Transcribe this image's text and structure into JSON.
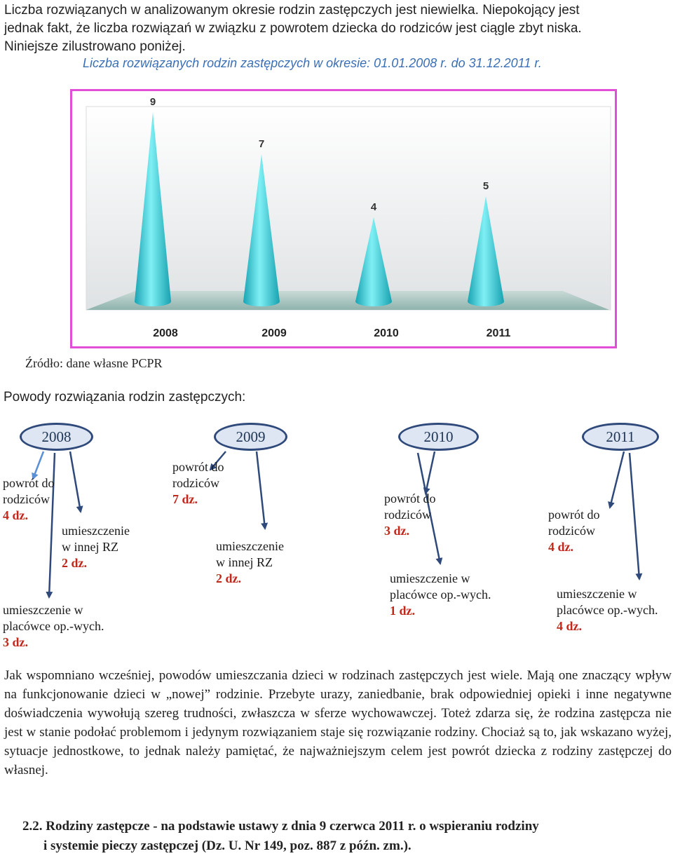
{
  "intro": {
    "lines": [
      "Liczba rozwiązanych w analizowanym okresie rodzin zastępczych jest niewielka. Niepokojący jest",
      "jednak fakt, że liczba rozwiązań w związku z powrotem dziecka do rodziców jest ciągle zbyt niska.",
      "Niniejsze zilustrowano poniżej."
    ]
  },
  "chart_caption": "Liczba rozwiązanych rodzin zastępczych w okresie: 01.01.2008 r. do 31.12.2011 r.",
  "chart_data": {
    "type": "bar",
    "title": "Liczba rozwiązanych rodzin zastępczych w okresie: 01.01.2008 r. do 31.12.2011 r.",
    "categories": [
      "2008",
      "2009",
      "2010",
      "2011"
    ],
    "values": [
      9,
      7,
      4,
      5
    ],
    "ylim": [
      0,
      9
    ],
    "shape": "cone",
    "color": "#3cc8d6",
    "grid": false,
    "legend": "none"
  },
  "source": "Źródło: dane własne PCPR",
  "reasons_title": "Powody rozwiązania rodzin zastępczych:",
  "years": [
    {
      "year": "2008",
      "reasons": [
        {
          "lines": [
            "powrót do",
            "rodziców"
          ],
          "count": "4 dz."
        },
        {
          "lines": [
            "umieszczenie",
            "w innej RZ"
          ],
          "count": "2 dz."
        },
        {
          "lines": [
            "umieszczenie  w",
            "placówce op.-wych."
          ],
          "count": "3 dz."
        }
      ]
    },
    {
      "year": "2009",
      "reasons": [
        {
          "lines": [
            "powrót do",
            "rodziców"
          ],
          "count": "7 dz."
        },
        {
          "lines": [
            "umieszczenie",
            "w innej RZ"
          ],
          "count": "2 dz."
        }
      ]
    },
    {
      "year": "2010",
      "reasons": [
        {
          "lines": [
            "powrót do",
            "rodziców"
          ],
          "count": "3 dz."
        },
        {
          "lines": [
            "umieszczenie w",
            "placówce op.-wych."
          ],
          "count": "1 dz."
        }
      ]
    },
    {
      "year": "2011",
      "reasons": [
        {
          "lines": [
            "powrót do",
            "rodziców"
          ],
          "count": "4 dz."
        },
        {
          "lines": [
            "umieszczenie w",
            "placówce op.-wych."
          ],
          "count": "4 dz."
        }
      ]
    }
  ],
  "body_text": "Jak wspomniano wcześniej, powodów umieszczania dzieci w rodzinach zastępczych  jest wiele. Mają one znaczący wpływ na funkcjonowanie dzieci w „nowej” rodzinie. Przebyte urazy, zaniedbanie, brak odpowiedniej opieki  i inne negatywne doświadczenia wywołują szereg trudności, zwłaszcza w sferze wychowawczej. Toteż zdarza się, że rodzina zastępcza nie jest w stanie podołać problemom i jedynym rozwiązaniem staje się rozwiązanie rodziny. Chociaż są to, jak wskazano wyżej, sytuacje jednostkowe, to jednak należy pamiętać, że najważniejszym celem jest powrót dziecka z  rodziny  zastępczej do własnej.",
  "section": {
    "line1": "2.2. Rodziny zastępcze - na podstawie ustawy z dnia 9 czerwca 2011 r. o wspieraniu rodziny",
    "line2": "i systemie pieczy zastępczej (Dz. U. Nr 149, poz. 887 z późn. zm.)."
  }
}
